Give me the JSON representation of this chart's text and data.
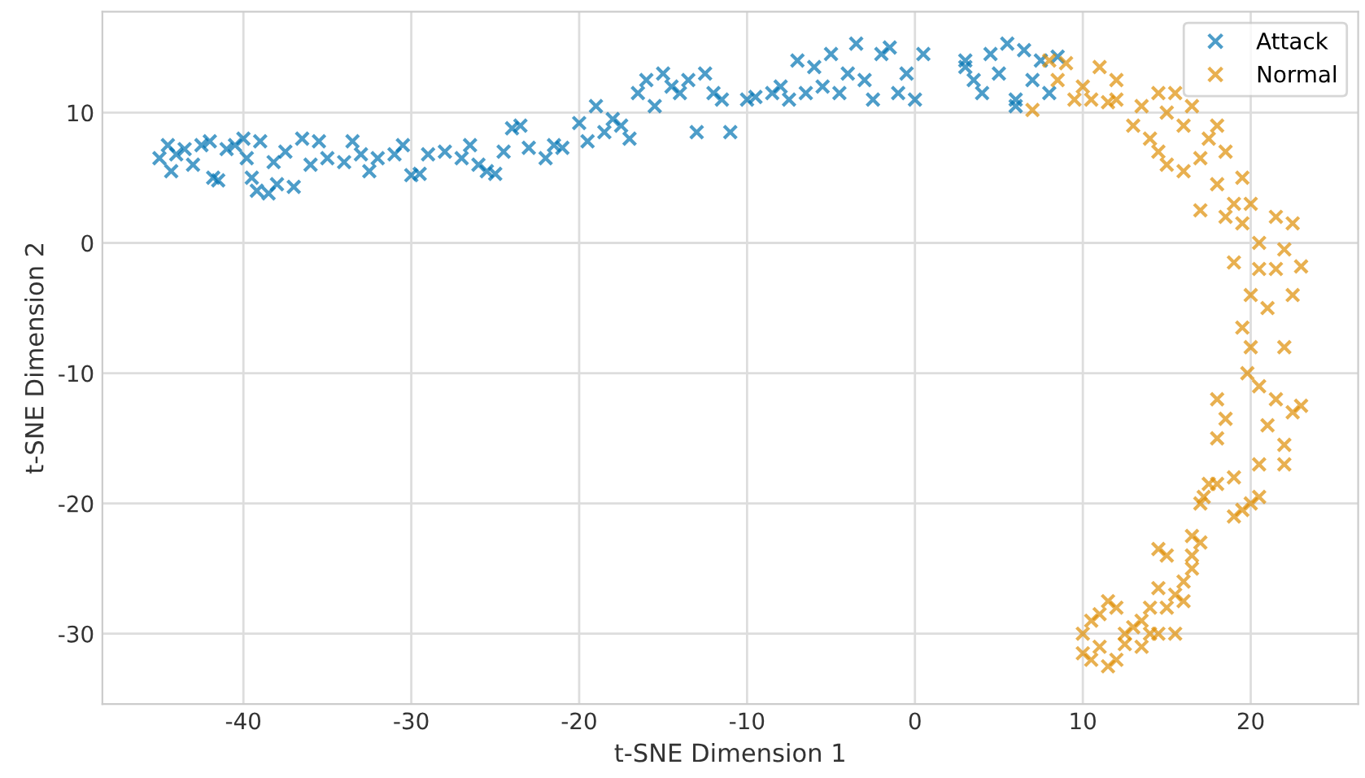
{
  "chart_data": {
    "type": "scatter",
    "xlabel": "t-SNE Dimension 1",
    "ylabel": "t-SNE Dimension 2",
    "xlim": [
      -48.4,
      26.4
    ],
    "ylim": [
      -35.4,
      17.75
    ],
    "xticks": [
      -40,
      -30,
      -20,
      -10,
      0,
      10,
      20
    ],
    "yticks": [
      -30,
      -20,
      -10,
      0,
      10
    ],
    "grid": true,
    "legend": "top right",
    "marker": "cross",
    "series": [
      {
        "name": "Attack",
        "color": "#0173b2",
        "x": [
          -45,
          -44.5,
          -44.3,
          -44,
          -43.5,
          -43,
          -42.5,
          -42,
          -41.8,
          -41.5,
          -41,
          -40.5,
          -40,
          -39.8,
          -39.5,
          -39.2,
          -39,
          -38.5,
          -38.2,
          -38,
          -37.5,
          -37,
          -36.5,
          -36,
          -35.5,
          -35,
          -34,
          -33.5,
          -33,
          -32.5,
          -32,
          -31,
          -30.5,
          -30,
          -29.5,
          -29,
          -28,
          -27,
          -26.5,
          -26,
          -25.5,
          -25,
          -24.5,
          -24,
          -23.5,
          -23,
          -22,
          -21.5,
          -21,
          -20,
          -19.5,
          -19,
          -18.5,
          -18,
          -17.5,
          -17,
          -16.5,
          -16,
          -15.5,
          -15,
          -14.5,
          -14,
          -13.5,
          -13,
          -12.5,
          -12,
          -11.5,
          -11,
          -10,
          -9.5,
          -8.5,
          -8,
          -7.5,
          -7,
          -6.5,
          -6,
          -5.5,
          -5,
          -4.5,
          -4,
          -3.5,
          -3,
          -2.5,
          -2,
          -1.5,
          -1,
          -0.5,
          0,
          0.5,
          3,
          3.5,
          4,
          4.5,
          5,
          5.5,
          6,
          6.5,
          7,
          7.5,
          8,
          8.5,
          3,
          6
        ],
        "values": [
          6.5,
          7.5,
          5.5,
          6.8,
          7.2,
          6,
          7.5,
          7.8,
          5,
          4.8,
          7.2,
          7.5,
          8,
          6.5,
          5,
          4,
          7.8,
          3.8,
          6.2,
          4.5,
          7,
          4.3,
          8,
          6,
          7.8,
          6.5,
          6.2,
          7.8,
          6.8,
          5.5,
          6.5,
          6.8,
          7.5,
          5.2,
          5.3,
          6.8,
          7,
          6.5,
          7.5,
          6,
          5.5,
          5.3,
          7,
          8.8,
          9,
          7.3,
          6.5,
          7.5,
          7.3,
          9.2,
          7.8,
          10.5,
          8.5,
          9.5,
          9,
          8,
          11.5,
          12.5,
          10.5,
          13,
          12,
          11.5,
          12.5,
          8.5,
          13,
          11.5,
          11,
          8.5,
          11,
          11.2,
          11.5,
          12,
          11,
          14,
          11.5,
          13.5,
          12,
          14.5,
          11.5,
          13,
          15.3,
          12.5,
          11,
          14.5,
          15,
          11.5,
          13,
          11,
          14.5,
          14,
          12.5,
          11.5,
          14.5,
          13,
          15.3,
          11,
          14.8,
          12.5,
          14,
          11.5,
          14.3,
          13.5,
          10.5
        ]
      },
      {
        "name": "Normal",
        "color": "#de8f05",
        "x": [
          7,
          8,
          8.5,
          9,
          9.5,
          10,
          10.5,
          11,
          11.5,
          12,
          12,
          13,
          13.5,
          14,
          14.5,
          14.5,
          15,
          15,
          15.5,
          16,
          16,
          16.5,
          17,
          17,
          17.5,
          18,
          18,
          18.5,
          18.5,
          19,
          19,
          19.5,
          19.5,
          20,
          20,
          20.5,
          20.5,
          21,
          21.5,
          21.5,
          22,
          22,
          22.5,
          23,
          22.5,
          19.5,
          19.8,
          20,
          20.5,
          21,
          21.5,
          22,
          22.5,
          23,
          22,
          20.5,
          20,
          19.5,
          19,
          18.5,
          18,
          18,
          17.5,
          17.2,
          17,
          16.5,
          16.5,
          16,
          15.5,
          15,
          14.5,
          14,
          14.5,
          14,
          13.5,
          13,
          12.5,
          12,
          11.5,
          11,
          10.5,
          10,
          10,
          10.5,
          11,
          11.5,
          12,
          12.5,
          13.5,
          14.5,
          15,
          15.5,
          16,
          16.5,
          17,
          18,
          19,
          20.5
        ],
        "values": [
          10.2,
          14,
          12.5,
          13.8,
          11,
          12,
          11,
          13.5,
          10.8,
          12.5,
          11,
          9,
          10.5,
          8,
          7,
          11.5,
          10,
          6,
          11.5,
          5.5,
          9,
          10.5,
          6.5,
          2.5,
          8,
          9,
          4.5,
          2,
          7,
          3,
          -1.5,
          1.5,
          5,
          3,
          -4,
          -2,
          0,
          -5,
          2,
          -2,
          -0.5,
          -8,
          1.5,
          -1.8,
          -4,
          -6.5,
          -10,
          -8,
          -11,
          -14,
          -12,
          -15.5,
          -13,
          -12.5,
          -17,
          -17,
          -20,
          -20.5,
          -18,
          -13.5,
          -12,
          -15,
          -18.5,
          -19.5,
          -23,
          -22.5,
          -25,
          -26,
          -27,
          -24,
          -26.5,
          -28,
          -23.5,
          -30,
          -31,
          -29.5,
          -30,
          -28,
          -27.5,
          -28.5,
          -29,
          -30,
          -31.5,
          -32,
          -31,
          -32.5,
          -32,
          -30.8,
          -29,
          -30,
          -28,
          -30,
          -27.5,
          -24,
          -20,
          -18.5,
          -21,
          -19.5
        ]
      }
    ]
  }
}
